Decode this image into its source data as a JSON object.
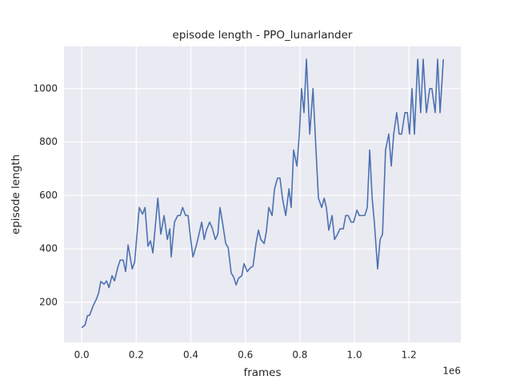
{
  "chart_data": {
    "type": "line",
    "title": "episode length - PPO_lunarlander",
    "x_label": "frames",
    "y_label": "episode length",
    "x_offset_text": "1e6",
    "color": "#4c72b0",
    "grid": true,
    "xlim": [
      -0.065,
      1.39
    ],
    "ylim": [
      50,
      1158
    ],
    "xticks": [
      {
        "value": 0,
        "label": "0.0"
      },
      0.2,
      0.4,
      0.6,
      0.8,
      {
        "value": 1,
        "label": "1.0"
      },
      1.2
    ],
    "yticks": [
      200,
      400,
      600,
      800,
      1000
    ],
    "x": [
      0,
      0.012,
      0.021,
      0.029,
      0.041,
      0.053,
      0.062,
      0.07,
      0.082,
      0.091,
      0.1,
      0.111,
      0.12,
      0.132,
      0.141,
      0.152,
      0.161,
      0.17,
      0.185,
      0.194,
      0.211,
      0.223,
      0.232,
      0.243,
      0.252,
      0.261,
      0.279,
      0.29,
      0.302,
      0.314,
      0.323,
      0.328,
      0.34,
      0.352,
      0.361,
      0.37,
      0.381,
      0.39,
      0.399,
      0.408,
      0.422,
      0.44,
      0.449,
      0.457,
      0.469,
      0.478,
      0.49,
      0.499,
      0.507,
      0.516,
      0.528,
      0.537,
      0.548,
      0.557,
      0.566,
      0.575,
      0.587,
      0.595,
      0.607,
      0.619,
      0.628,
      0.639,
      0.648,
      0.657,
      0.669,
      0.677,
      0.686,
      0.698,
      0.707,
      0.718,
      0.727,
      0.736,
      0.748,
      0.76,
      0.768,
      0.777,
      0.789,
      0.798,
      0.806,
      0.815,
      0.824,
      0.836,
      0.848,
      0.859,
      0.868,
      0.88,
      0.889,
      0.897,
      0.906,
      0.918,
      0.927,
      0.938,
      0.947,
      0.959,
      0.968,
      0.977,
      0.988,
      0.997,
      1.009,
      1.018,
      1.029,
      1.038,
      1.047,
      1.056,
      1.065,
      1.073,
      1.085,
      1.094,
      1.103,
      1.114,
      1.126,
      1.135,
      1.144,
      1.155,
      1.164,
      1.173,
      1.185,
      1.194,
      1.202,
      1.211,
      1.22,
      1.232,
      1.243,
      1.252,
      1.264,
      1.276,
      1.284,
      1.296,
      1.305,
      1.314,
      1.326
    ],
    "values": [
      105,
      115,
      150,
      152,
      185,
      210,
      235,
      278,
      268,
      280,
      255,
      300,
      280,
      330,
      358,
      358,
      315,
      415,
      325,
      350,
      555,
      530,
      555,
      410,
      430,
      385,
      590,
      455,
      525,
      435,
      475,
      370,
      500,
      525,
      525,
      555,
      525,
      525,
      440,
      370,
      420,
      500,
      435,
      470,
      500,
      480,
      435,
      455,
      555,
      500,
      420,
      405,
      310,
      295,
      265,
      290,
      300,
      345,
      315,
      330,
      335,
      420,
      470,
      435,
      420,
      465,
      555,
      525,
      625,
      665,
      665,
      590,
      525,
      625,
      555,
      770,
      710,
      830,
      1000,
      910,
      1110,
      830,
      1000,
      770,
      590,
      555,
      590,
      555,
      470,
      525,
      435,
      455,
      475,
      475,
      525,
      525,
      500,
      500,
      545,
      525,
      525,
      525,
      555,
      770,
      590,
      500,
      325,
      435,
      455,
      770,
      830,
      710,
      830,
      910,
      830,
      830,
      910,
      910,
      830,
      1000,
      830,
      1110,
      910,
      1110,
      910,
      1000,
      1000,
      910,
      1110,
      910,
      1110
    ]
  }
}
